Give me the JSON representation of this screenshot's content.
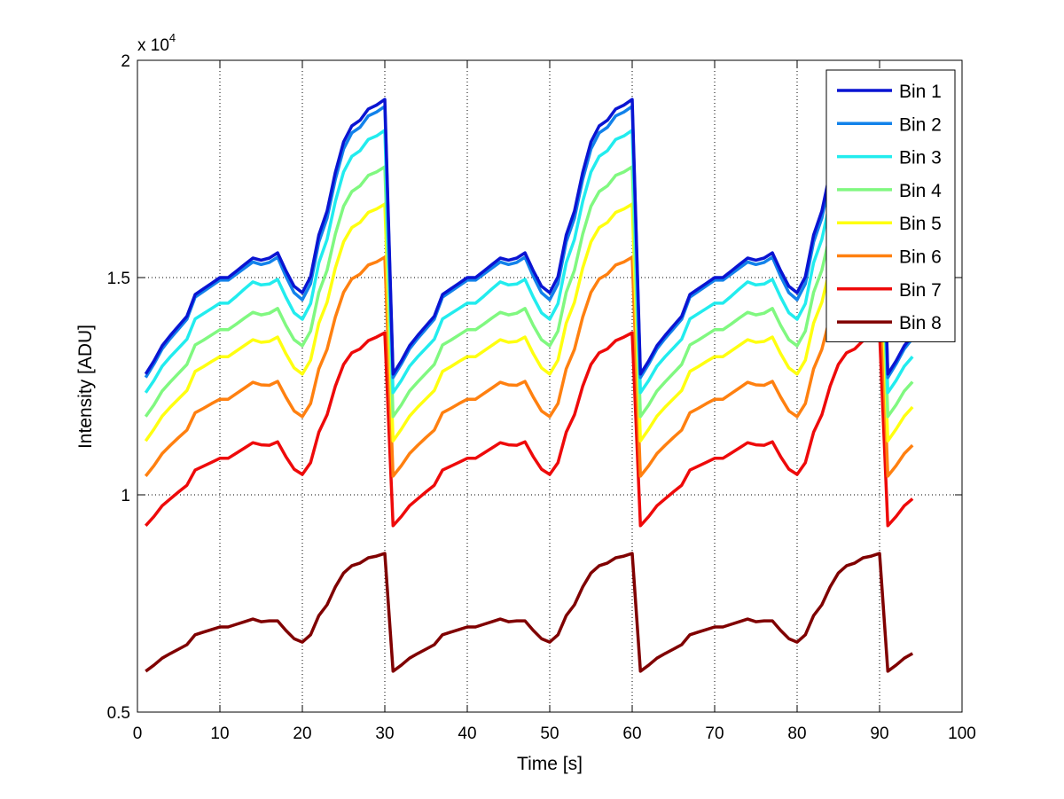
{
  "chart_data": {
    "type": "line",
    "title": "",
    "xlabel": "Time [s]",
    "ylabel": "Intensity [ADU]",
    "y_multiplier_label": {
      "base": "x 10",
      "exponent": "4"
    },
    "xlim": [
      0,
      100
    ],
    "ylim": [
      0.5,
      2
    ],
    "xticks": [
      0,
      10,
      20,
      30,
      40,
      50,
      60,
      70,
      80,
      90,
      100
    ],
    "yticks": [
      0.5,
      1,
      1.5,
      2
    ],
    "ytick_labels": [
      "0.5",
      "1",
      "1.5",
      "2"
    ],
    "grid": true,
    "legend_position": "top-right",
    "x": [
      1,
      2,
      3,
      4,
      5,
      6,
      7,
      8,
      9,
      10,
      11,
      12,
      13,
      14,
      15,
      16,
      17,
      18,
      19,
      20,
      21,
      22,
      23,
      24,
      25,
      26,
      27,
      28,
      29,
      30,
      31,
      32,
      33,
      34,
      35,
      36,
      37,
      38,
      39,
      40,
      41,
      42,
      43,
      44,
      45,
      46,
      47,
      48,
      49,
      50,
      51,
      52,
      53,
      54,
      55,
      56,
      57,
      58,
      59,
      60,
      61,
      62,
      63,
      64,
      65,
      66,
      67,
      68,
      69,
      70,
      71,
      72,
      73,
      74,
      75,
      76,
      77,
      78,
      79,
      80,
      81,
      82,
      83,
      84,
      85,
      86,
      87,
      88,
      89,
      90,
      91,
      92,
      93,
      94
    ],
    "period_note": "values repeat each 30 s",
    "series": [
      {
        "name": "Bin 1",
        "color": "#0a14d2",
        "period": [
          1.278,
          1.308,
          1.343,
          1.367,
          1.389,
          1.411,
          1.461,
          1.474,
          1.487,
          1.5,
          1.5,
          1.515,
          1.53,
          1.545,
          1.54,
          1.545,
          1.557,
          1.516,
          1.48,
          1.465,
          1.502,
          1.598,
          1.653,
          1.742,
          1.812,
          1.849,
          1.862,
          1.888,
          1.897,
          1.91
        ]
      },
      {
        "name": "Bin 2",
        "color": "#1282ea",
        "period": [
          1.27,
          1.301,
          1.336,
          1.36,
          1.382,
          1.404,
          1.455,
          1.468,
          1.481,
          1.494,
          1.494,
          1.508,
          1.522,
          1.536,
          1.53,
          1.535,
          1.547,
          1.503,
          1.465,
          1.449,
          1.486,
          1.582,
          1.637,
          1.726,
          1.796,
          1.833,
          1.846,
          1.872,
          1.881,
          1.894
        ]
      },
      {
        "name": "Bin 3",
        "color": "#22ecee",
        "period": [
          1.235,
          1.263,
          1.296,
          1.318,
          1.338,
          1.358,
          1.405,
          1.417,
          1.429,
          1.441,
          1.441,
          1.457,
          1.474,
          1.49,
          1.483,
          1.485,
          1.496,
          1.455,
          1.419,
          1.404,
          1.44,
          1.534,
          1.588,
          1.675,
          1.743,
          1.779,
          1.792,
          1.818,
          1.826,
          1.839
        ]
      },
      {
        "name": "Bin 4",
        "color": "#80f880",
        "period": [
          1.18,
          1.207,
          1.239,
          1.26,
          1.28,
          1.3,
          1.345,
          1.356,
          1.368,
          1.38,
          1.38,
          1.393,
          1.407,
          1.42,
          1.414,
          1.418,
          1.429,
          1.39,
          1.357,
          1.343,
          1.377,
          1.466,
          1.517,
          1.6,
          1.664,
          1.698,
          1.711,
          1.735,
          1.743,
          1.755
        ]
      },
      {
        "name": "Bin 5",
        "color": "#ffff10",
        "period": [
          1.124,
          1.151,
          1.181,
          1.202,
          1.221,
          1.24,
          1.284,
          1.295,
          1.307,
          1.318,
          1.318,
          1.331,
          1.344,
          1.357,
          1.351,
          1.353,
          1.363,
          1.325,
          1.292,
          1.278,
          1.31,
          1.395,
          1.443,
          1.522,
          1.582,
          1.615,
          1.627,
          1.65,
          1.658,
          1.669
        ]
      },
      {
        "name": "Bin 6",
        "color": "#ff8010",
        "period": [
          1.043,
          1.067,
          1.095,
          1.114,
          1.132,
          1.149,
          1.189,
          1.199,
          1.21,
          1.22,
          1.22,
          1.233,
          1.246,
          1.259,
          1.253,
          1.252,
          1.261,
          1.225,
          1.193,
          1.18,
          1.21,
          1.29,
          1.335,
          1.409,
          1.466,
          1.497,
          1.508,
          1.529,
          1.536,
          1.547
        ]
      },
      {
        "name": "Bin 7",
        "color": "#ee0a0a",
        "period": [
          0.929,
          0.95,
          0.975,
          0.991,
          1.007,
          1.022,
          1.057,
          1.066,
          1.075,
          1.084,
          1.084,
          1.096,
          1.108,
          1.12,
          1.115,
          1.114,
          1.122,
          1.088,
          1.059,
          1.047,
          1.074,
          1.144,
          1.184,
          1.25,
          1.3,
          1.327,
          1.336,
          1.355,
          1.363,
          1.373
        ]
      },
      {
        "name": "Bin 8",
        "color": "#800000",
        "period": [
          0.594,
          0.608,
          0.624,
          0.635,
          0.645,
          0.655,
          0.678,
          0.684,
          0.69,
          0.696,
          0.696,
          0.702,
          0.708,
          0.714,
          0.708,
          0.71,
          0.71,
          0.688,
          0.669,
          0.661,
          0.678,
          0.722,
          0.747,
          0.788,
          0.82,
          0.837,
          0.843,
          0.855,
          0.859,
          0.865
        ]
      }
    ]
  }
}
